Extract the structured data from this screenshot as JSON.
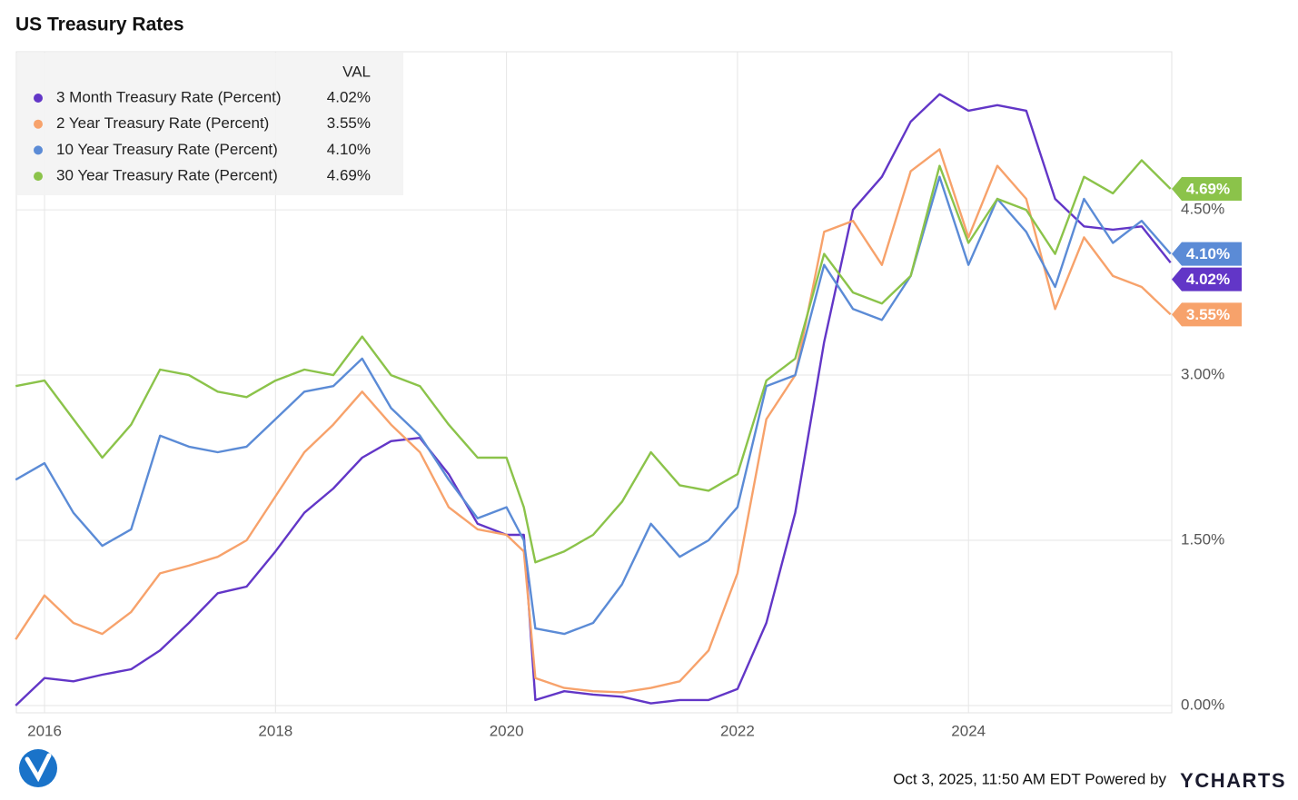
{
  "chart_data": {
    "type": "line",
    "title": "US Treasury Rates",
    "legend_header": "VAL",
    "footer": "Oct 3, 2025, 11:50 AM EDT Powered by",
    "brand": "YCHARTS",
    "x": [
      2015.75,
      2016.0,
      2016.25,
      2016.5,
      2016.75,
      2017.0,
      2017.25,
      2017.5,
      2017.75,
      2018.0,
      2018.25,
      2018.5,
      2018.75,
      2019.0,
      2019.25,
      2019.5,
      2019.75,
      2020.0,
      2020.15,
      2020.25,
      2020.5,
      2020.75,
      2021.0,
      2021.25,
      2021.5,
      2021.75,
      2022.0,
      2022.25,
      2022.5,
      2022.75,
      2023.0,
      2023.25,
      2023.5,
      2023.75,
      2024.0,
      2024.25,
      2024.5,
      2024.75,
      2025.0,
      2025.25,
      2025.5,
      2025.75
    ],
    "series": [
      {
        "name": "3 Month Treasury Rate (Percent)",
        "color": "#6236c7",
        "value_label": "4.02%",
        "values": [
          0.0,
          0.25,
          0.22,
          0.28,
          0.33,
          0.5,
          0.75,
          1.02,
          1.08,
          1.4,
          1.75,
          1.97,
          2.25,
          2.4,
          2.43,
          2.1,
          1.65,
          1.55,
          1.55,
          0.05,
          0.13,
          0.1,
          0.08,
          0.02,
          0.05,
          0.05,
          0.15,
          0.75,
          1.75,
          3.3,
          4.5,
          4.8,
          5.3,
          5.55,
          5.4,
          5.45,
          5.4,
          4.6,
          4.35,
          4.32,
          4.35,
          4.02
        ]
      },
      {
        "name": "2 Year Treasury Rate (Percent)",
        "color": "#f7a26b",
        "value_label": "3.55%",
        "values": [
          0.6,
          1.0,
          0.75,
          0.65,
          0.85,
          1.2,
          1.27,
          1.35,
          1.5,
          1.9,
          2.3,
          2.55,
          2.85,
          2.55,
          2.3,
          1.8,
          1.6,
          1.55,
          1.4,
          0.25,
          0.16,
          0.13,
          0.12,
          0.16,
          0.22,
          0.5,
          1.2,
          2.6,
          3.0,
          4.3,
          4.4,
          4.0,
          4.85,
          5.05,
          4.25,
          4.9,
          4.6,
          3.6,
          4.25,
          3.9,
          3.8,
          3.55
        ]
      },
      {
        "name": "10 Year Treasury Rate (Percent)",
        "color": "#5b8bd6",
        "value_label": "4.10%",
        "values": [
          2.05,
          2.2,
          1.75,
          1.45,
          1.6,
          2.45,
          2.35,
          2.3,
          2.35,
          2.6,
          2.85,
          2.9,
          3.15,
          2.7,
          2.45,
          2.05,
          1.7,
          1.8,
          1.5,
          0.7,
          0.65,
          0.75,
          1.1,
          1.65,
          1.35,
          1.5,
          1.8,
          2.9,
          3.0,
          4.0,
          3.6,
          3.5,
          3.9,
          4.8,
          4.0,
          4.6,
          4.3,
          3.8,
          4.6,
          4.2,
          4.4,
          4.1
        ]
      },
      {
        "name": "30 Year Treasury Rate (Percent)",
        "color": "#8bc34a",
        "value_label": "4.69%",
        "values": [
          2.9,
          2.95,
          2.6,
          2.25,
          2.55,
          3.05,
          3.0,
          2.85,
          2.8,
          2.95,
          3.05,
          3.0,
          3.35,
          3.0,
          2.9,
          2.55,
          2.25,
          2.25,
          1.8,
          1.3,
          1.4,
          1.55,
          1.85,
          2.3,
          2.0,
          1.95,
          2.1,
          2.95,
          3.15,
          4.1,
          3.75,
          3.65,
          3.9,
          4.9,
          4.2,
          4.6,
          4.5,
          4.1,
          4.8,
          4.65,
          4.95,
          4.69
        ]
      }
    ],
    "xlim": [
      2015.756,
      2025.76
    ],
    "xticks": [
      2016,
      2018,
      2020,
      2022,
      2024
    ],
    "ylim": [
      -0.066,
      5.935
    ],
    "yticks": [
      {
        "value": 0,
        "label": "0.00%"
      },
      {
        "value": 1.5,
        "label": "1.50%"
      },
      {
        "value": 3,
        "label": "3.00%"
      },
      {
        "value": 4.5,
        "label": "4.50%"
      }
    ],
    "grid": true
  }
}
